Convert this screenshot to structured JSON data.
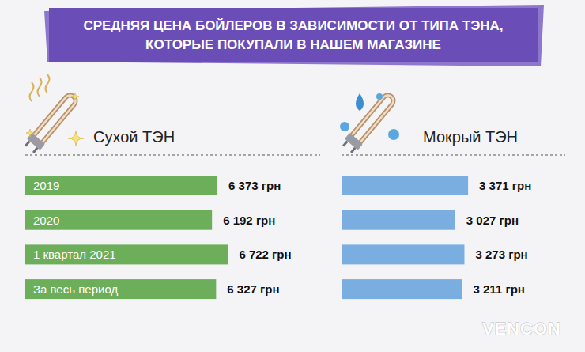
{
  "title": "СРЕДНЯЯ ЦЕНА БОЙЛЕРОВ В ЗАВИСИМОСТИ ОТ ТИПА ТЭНА, КОТОРЫЕ ПОКУПАЛИ В НАШЕМ МАГАЗИНЕ",
  "brand": "VENCON",
  "chart_data": [
    {
      "type": "bar",
      "orientation": "horizontal",
      "title": "Сухой ТЭН",
      "categories": [
        "2019",
        "2020",
        "1 квартал 2021",
        "За весь период"
      ],
      "values": [
        6373,
        6192,
        6722,
        6327
      ],
      "value_labels": [
        "6 373 грн",
        "6 192 грн",
        "6 722 грн",
        "6 327 грн"
      ],
      "color": "#6cae5a",
      "xlim": [
        0,
        7000
      ],
      "data_labels": true,
      "tick_labels": false,
      "grid": false
    },
    {
      "type": "bar",
      "orientation": "horizontal",
      "title": "Мокрый ТЭН",
      "categories": [
        null,
        null,
        null,
        null
      ],
      "values": [
        3371,
        3027,
        3273,
        3211
      ],
      "value_labels": [
        "3 371 грн",
        "3 027 грн",
        "3 273 грн",
        "3 211 грн"
      ],
      "color": "#7aaee0",
      "xlim": [
        0,
        4000
      ],
      "data_labels": true,
      "tick_labels": false,
      "grid": false
    }
  ]
}
